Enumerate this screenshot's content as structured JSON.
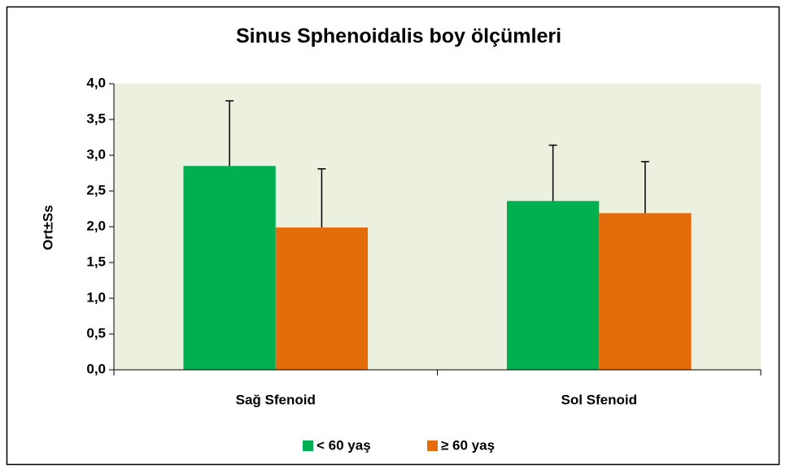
{
  "chart_data": {
    "type": "bar",
    "title": "Sinus Sphenoidalis boy ölçümleri",
    "ylabel": "Ort±Ss",
    "categories": [
      "Sağ Sfenoid",
      "Sol Sfenoid"
    ],
    "series": [
      {
        "name": "< 60 yaş",
        "color": "#00b050",
        "values": [
          2.85,
          2.36
        ],
        "errors": [
          0.91,
          0.78
        ]
      },
      {
        "name": "≥ 60 yaş",
        "color": "#e46c0a",
        "values": [
          1.99,
          2.19
        ],
        "errors": [
          0.82,
          0.72
        ]
      }
    ],
    "ylim": [
      0,
      4
    ],
    "yticks": [
      {
        "value": 0,
        "label": "0,0"
      },
      {
        "value": 0.5,
        "label": "0,5"
      },
      {
        "value": 1,
        "label": "1,0"
      },
      {
        "value": 1.5,
        "label": "1,5"
      },
      {
        "value": 2,
        "label": "2,0"
      },
      {
        "value": 2.5,
        "label": "2,5"
      },
      {
        "value": 3,
        "label": "3,0"
      },
      {
        "value": 3.5,
        "label": "3,5"
      },
      {
        "value": 4,
        "label": "4,0"
      }
    ],
    "grid": false,
    "legend": "bottom"
  }
}
